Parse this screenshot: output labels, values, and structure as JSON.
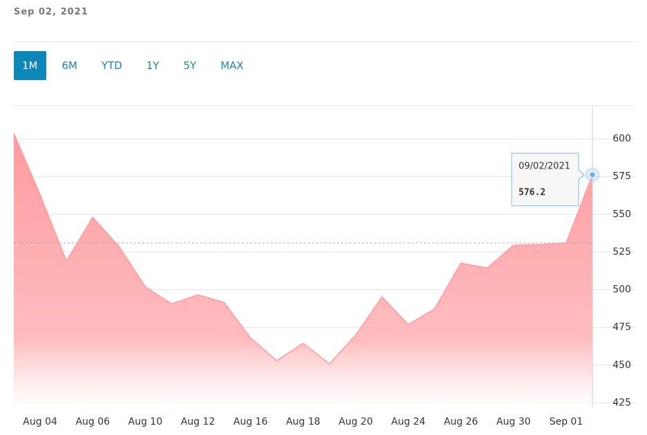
{
  "header": {
    "date": "Sep 02, 2021"
  },
  "range_buttons": [
    "1M",
    "6M",
    "YTD",
    "1Y",
    "5Y",
    "MAX"
  ],
  "active_range_index": 0,
  "chart_data": {
    "type": "area",
    "categories": [
      null,
      "Aug 04",
      null,
      "Aug 06",
      null,
      "Aug 10",
      null,
      "Aug 12",
      null,
      "Aug 16",
      null,
      "Aug 18",
      null,
      "Aug 20",
      null,
      "Aug 24",
      null,
      "Aug 26",
      null,
      "Aug 30",
      null,
      "Sep 01",
      null
    ],
    "values": [
      603.7,
      563,
      519,
      548,
      528.6,
      502,
      490.6,
      496.6,
      491.5,
      468,
      453,
      464.5,
      450.8,
      470,
      495.2,
      476.9,
      487.4,
      517.6,
      514.4,
      529.5,
      530,
      531,
      576.2
    ],
    "color": "#ff9a9e",
    "ylim": [
      422,
      622
    ],
    "yticks": [
      425,
      450,
      475,
      500,
      525,
      550,
      575,
      600
    ],
    "grid": true,
    "reference_line": 531,
    "tooltip": {
      "index": 22,
      "label": "09/02/2021"
    }
  }
}
